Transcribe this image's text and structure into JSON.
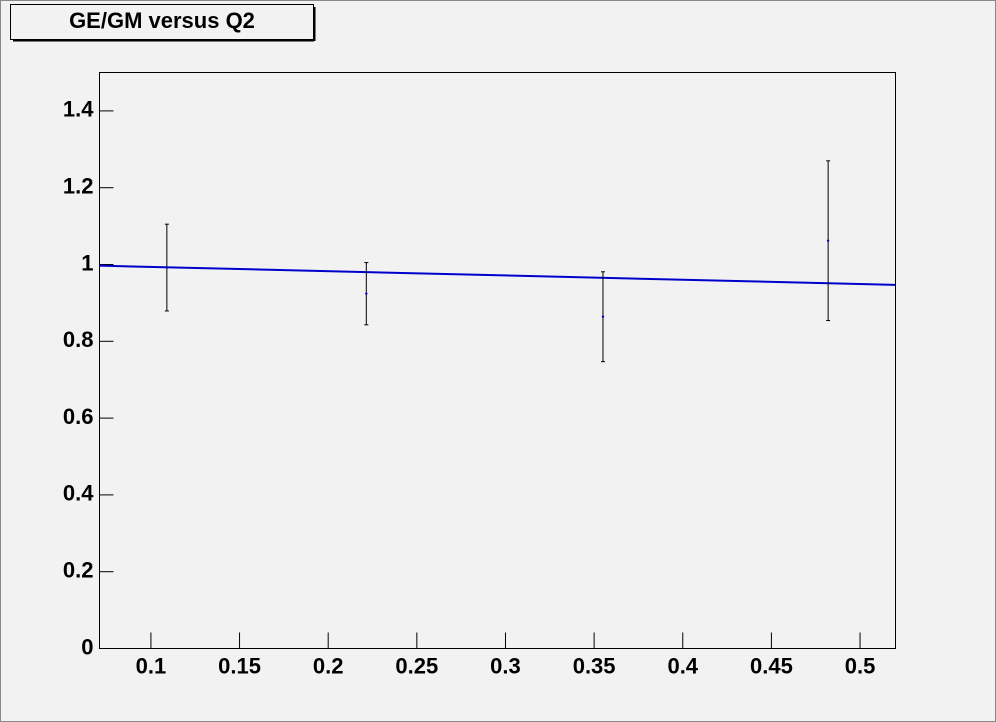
{
  "chart_data": {
    "type": "errorbar",
    "title": "GE/GM versus Q2",
    "x": [
      0.109,
      0.2215,
      0.355,
      0.482
    ],
    "values": [
      0.992,
      0.924,
      0.864,
      1.062
    ],
    "errors": [
      0.113,
      0.081,
      0.117,
      0.208
    ],
    "color": "#000000",
    "fit": {
      "x": [
        0.071,
        0.52
      ],
      "values": [
        0.997,
        0.947
      ],
      "color": "#0000cc"
    },
    "xlim": [
      0.071,
      0.52
    ],
    "xticks": [
      0.1,
      0.15,
      0.2,
      0.25,
      0.3,
      0.35,
      0.4,
      0.45,
      0.5
    ],
    "ylim": [
      0,
      1.5
    ],
    "yticks": [
      0,
      0.2,
      0.4,
      0.6,
      0.8,
      1,
      1.2,
      1.4
    ],
    "grid": false
  }
}
